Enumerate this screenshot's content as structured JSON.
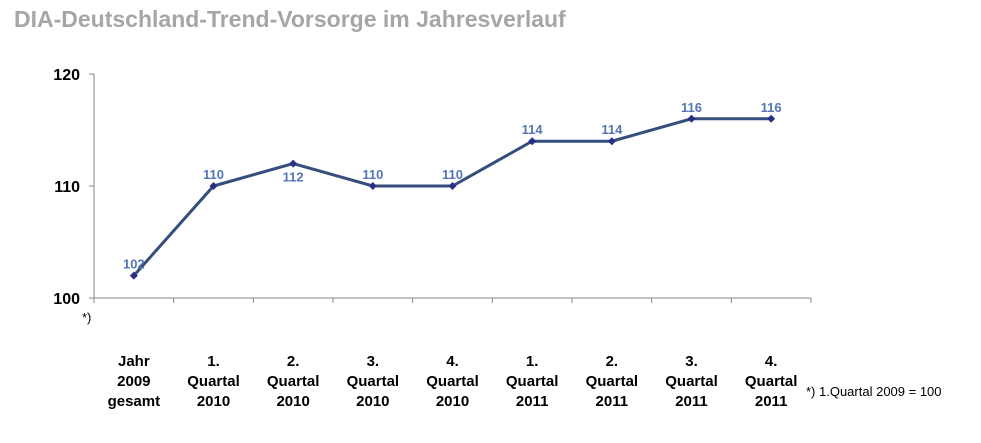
{
  "title": "DIA-Deutschland-Trend-Vorsorge im Jahresverlauf",
  "axis_note": "*)",
  "footnote": "*) 1.Quartal 2009 = 100",
  "colors": {
    "line": "#354e7b",
    "marker": "#2b2e86",
    "label": "#5574b4"
  },
  "chart_data": {
    "type": "line",
    "title": "DIA-Deutschland-Trend-Vorsorge im Jahresverlauf",
    "categories": [
      [
        "Jahr",
        "2009",
        "gesamt"
      ],
      [
        "1.",
        "Quartal",
        "2010"
      ],
      [
        "2.",
        "Quartal",
        "2010"
      ],
      [
        "3.",
        "Quartal",
        "2010"
      ],
      [
        "4.",
        "Quartal",
        "2010"
      ],
      [
        "1.",
        "Quartal",
        "2011"
      ],
      [
        "2.",
        "Quartal",
        "2011"
      ],
      [
        "3.",
        "Quartal",
        "2011"
      ],
      [
        "4.",
        "Quartal",
        "2011"
      ]
    ],
    "values": [
      102,
      110,
      112,
      110,
      110,
      114,
      114,
      116,
      116
    ],
    "data_labels": [
      "102",
      "110",
      "112",
      "110",
      "110",
      "114",
      "114",
      "116",
      "116"
    ],
    "label_placement": [
      "above",
      "above",
      "below",
      "above",
      "above",
      "above",
      "above",
      "above",
      "above"
    ],
    "yticks": [
      "100",
      "110",
      "120"
    ],
    "ylim": [
      100,
      120
    ],
    "grid": false,
    "legend": "none"
  }
}
